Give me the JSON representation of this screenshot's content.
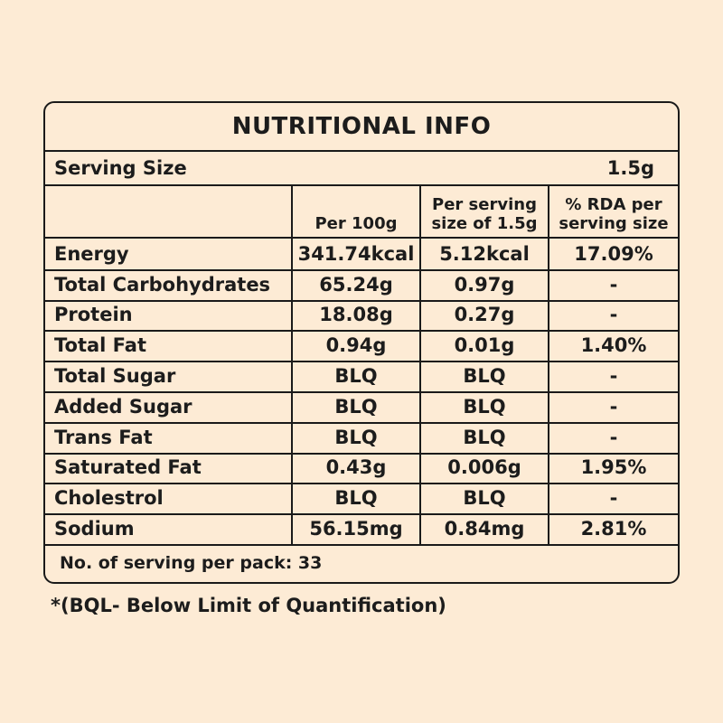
{
  "title": "NUTRITIONAL INFO",
  "serving_size": {
    "label": "Serving Size",
    "value": "1.5g"
  },
  "headers": [
    "Per 100g",
    "Per serving size of 1.5g",
    "% RDA per serving size"
  ],
  "rows": [
    {
      "name": "Energy",
      "per100": "341.74kcal",
      "serving": "5.12kcal",
      "rda": "17.09%"
    },
    {
      "name": "Total Carbohydrates",
      "per100": "65.24g",
      "serving": "0.97g",
      "rda": "-"
    },
    {
      "name": "Protein",
      "per100": "18.08g",
      "serving": "0.27g",
      "rda": "-"
    },
    {
      "name": "Total Fat",
      "per100": "0.94g",
      "serving": "0.01g",
      "rda": "1.40%"
    },
    {
      "name": "Total Sugar",
      "per100": "BLQ",
      "serving": "BLQ",
      "rda": "-"
    },
    {
      "name": "Added Sugar",
      "per100": "BLQ",
      "serving": "BLQ",
      "rda": "-"
    },
    {
      "name": "Trans Fat",
      "per100": "BLQ",
      "serving": "BLQ",
      "rda": "-"
    },
    {
      "name": "Saturated Fat",
      "per100": "0.43g",
      "serving": "0.006g",
      "rda": "1.95%"
    },
    {
      "name": "Cholestrol",
      "per100": "BLQ",
      "serving": "BLQ",
      "rda": "-"
    },
    {
      "name": "Sodium",
      "per100": "56.15mg",
      "serving": "0.84mg",
      "rda": "2.81%"
    }
  ],
  "servings_per_pack": "No. of serving per pack: 33",
  "footnote": "*(BQL- Below Limit of Quantification)",
  "colors": {
    "background": "#fdebd5",
    "ink": "#1c1c1c"
  }
}
